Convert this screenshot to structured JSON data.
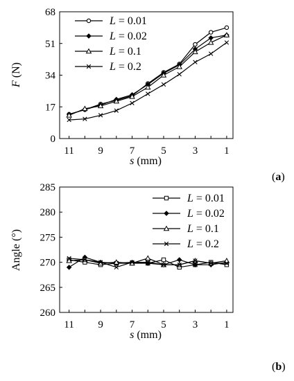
{
  "chart_data": [
    {
      "panel_label": "(a)",
      "type": "line",
      "ylabel": "F (N)",
      "ylabel_var": "F",
      "ylabel_unit": " (N)",
      "xlabel": "s (mm)",
      "xlabel_var": "s",
      "xlabel_unit": " (mm)",
      "xlim": [
        11.6,
        0.6
      ],
      "ylim": [
        0,
        68
      ],
      "xticks": [
        11,
        9,
        7,
        5,
        3,
        1
      ],
      "xtick_labels": [
        "11",
        "9",
        "7",
        "5",
        "3",
        "1"
      ],
      "yticks": [
        0,
        17,
        34,
        51,
        68
      ],
      "ytick_labels": [
        "0",
        "17",
        "34",
        "51",
        "68"
      ],
      "legend_position": "top-left",
      "x": [
        11,
        10,
        9,
        8,
        7,
        6,
        5,
        4,
        3,
        2,
        1
      ],
      "series": [
        {
          "name": "L = 0.01",
          "var": "L",
          "eq": " = 0.01",
          "marker": "open-circle",
          "values": [
            13,
            15.5,
            18.5,
            20.5,
            23,
            29.5,
            35.5,
            40,
            50.5,
            57,
            59.5
          ]
        },
        {
          "name": "L = 0.02",
          "var": "L",
          "eq": " = 0.02",
          "marker": "filled-diamond",
          "values": [
            13,
            15.5,
            18,
            21,
            23.5,
            29,
            35,
            39.5,
            48,
            54,
            55.5
          ]
        },
        {
          "name": "L = 0.1",
          "var": "L",
          "eq": " = 0.1",
          "marker": "open-triangle",
          "values": [
            12.5,
            16,
            17.5,
            20,
            22.5,
            27.5,
            34,
            38.5,
            46.5,
            51.5,
            55.5
          ]
        },
        {
          "name": "L = 0.2",
          "var": "L",
          "eq": " = 0.2",
          "marker": "x",
          "values": [
            10,
            10.5,
            12.5,
            15,
            19,
            24,
            29,
            34.5,
            41,
            45.5,
            51.5
          ]
        }
      ]
    },
    {
      "panel_label": "(b)",
      "type": "line",
      "ylabel": "Angle (°)",
      "ylabel_var": "",
      "ylabel_unit": "Angle (°)",
      "xlabel": "s (mm)",
      "xlabel_var": "s",
      "xlabel_unit": " (mm)",
      "xlim": [
        11.6,
        0.6
      ],
      "ylim": [
        260,
        285
      ],
      "xticks": [
        11,
        9,
        7,
        5,
        3,
        1
      ],
      "xtick_labels": [
        "11",
        "9",
        "7",
        "5",
        "3",
        "1"
      ],
      "yticks": [
        260,
        265,
        270,
        275,
        280,
        285
      ],
      "ytick_labels": [
        "260",
        "265",
        "270",
        "275",
        "280",
        "285"
      ],
      "legend_position": "top-right",
      "x": [
        11,
        10,
        9,
        8,
        7,
        6,
        5,
        4,
        3,
        2,
        1
      ],
      "series": [
        {
          "name": "L = 0.01",
          "var": "L",
          "eq": " = 0.01",
          "marker": "open-square",
          "values": [
            270.5,
            270,
            269.5,
            269.8,
            269.8,
            269.8,
            270.5,
            269,
            269.5,
            270,
            269.5
          ]
        },
        {
          "name": "L = 0.02",
          "var": "L",
          "eq": " = 0.02",
          "marker": "filled-diamond",
          "values": [
            269,
            271,
            270,
            269.8,
            270,
            269.8,
            269.5,
            270.5,
            269.5,
            269.5,
            270
          ]
        },
        {
          "name": "L = 0.1",
          "var": "L",
          "eq": " = 0.1",
          "marker": "open-triangle",
          "values": [
            270.3,
            270.5,
            269.8,
            270,
            269.8,
            270.8,
            269.5,
            269.5,
            270.3,
            269.8,
            270.3
          ]
        },
        {
          "name": "L = 0.2",
          "var": "L",
          "eq": " = 0.2",
          "marker": "x",
          "values": [
            270.8,
            270.5,
            270,
            269,
            270,
            270,
            269.5,
            269.5,
            270.3,
            269.8,
            269.8
          ]
        }
      ]
    }
  ]
}
